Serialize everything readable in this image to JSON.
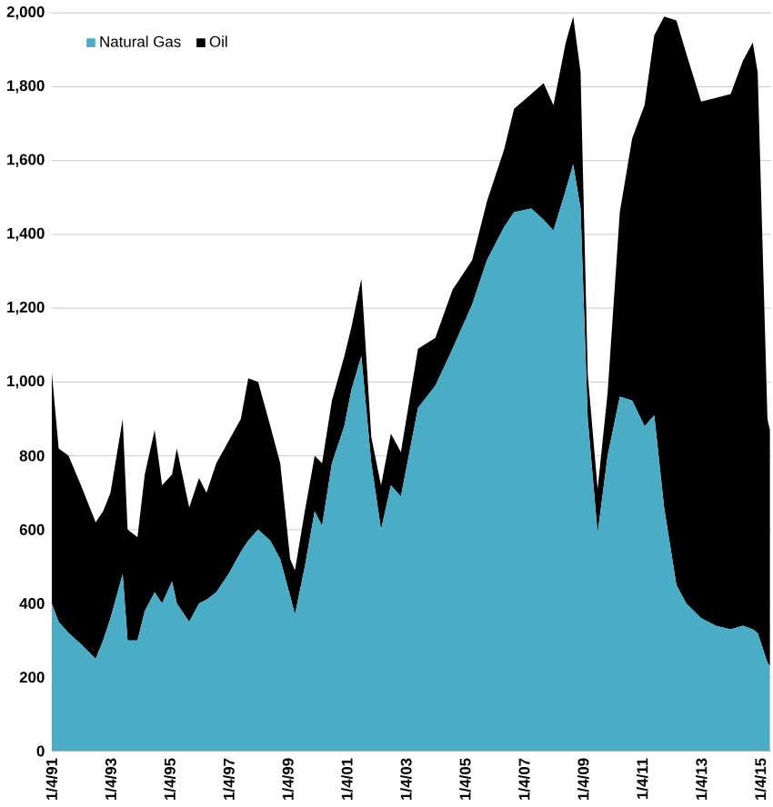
{
  "chart_data": {
    "type": "area",
    "stacked": true,
    "x": [
      "1991-01-04",
      "1991-04",
      "1991-08",
      "1992-01",
      "1992-07",
      "1992-10",
      "1993-01",
      "1993-06",
      "1993-08",
      "1993-12",
      "1994-03",
      "1994-07",
      "1994-10",
      "1995-02",
      "1995-04",
      "1995-09",
      "1996-01",
      "1996-04",
      "1996-08",
      "1997-01",
      "1997-06",
      "1997-09",
      "1998-01",
      "1998-06",
      "1998-10",
      "1999-02",
      "1999-04",
      "1999-08",
      "1999-12",
      "2000-03",
      "2000-07",
      "2000-12",
      "2001-03",
      "2001-07",
      "2001-11",
      "2002-03",
      "2002-07",
      "2002-11",
      "2003-06",
      "2004-01",
      "2004-08",
      "2005-04",
      "2005-10",
      "2006-05",
      "2006-09",
      "2007-04",
      "2007-09",
      "2008-01",
      "2008-06",
      "2008-09",
      "2008-12",
      "2009-03",
      "2009-07",
      "2009-11",
      "2010-04",
      "2010-09",
      "2011-02",
      "2011-06",
      "2011-10",
      "2012-03",
      "2012-07",
      "2013-01",
      "2013-07",
      "2014-01",
      "2014-06",
      "2014-10",
      "2014-12",
      "2015-04",
      "2015-05"
    ],
    "series": [
      {
        "name": "Natural Gas",
        "color": "#4bacc6",
        "values": [
          400,
          350,
          320,
          290,
          250,
          300,
          360,
          480,
          300,
          300,
          380,
          430,
          400,
          460,
          400,
          350,
          400,
          410,
          430,
          480,
          540,
          570,
          600,
          570,
          520,
          420,
          370,
          500,
          650,
          610,
          780,
          880,
          980,
          1070,
          780,
          600,
          720,
          690,
          930,
          990,
          1090,
          1210,
          1330,
          1420,
          1460,
          1470,
          1440,
          1410,
          1520,
          1590,
          1470,
          900,
          590,
          800,
          960,
          950,
          880,
          910,
          660,
          450,
          400,
          360,
          340,
          330,
          340,
          330,
          320,
          240,
          230
        ]
      },
      {
        "name": "Oil",
        "color": "#000000",
        "values": [
          630,
          470,
          480,
          430,
          370,
          350,
          340,
          420,
          300,
          280,
          370,
          440,
          320,
          290,
          420,
          310,
          340,
          290,
          350,
          360,
          360,
          440,
          400,
          310,
          260,
          100,
          120,
          150,
          150,
          170,
          170,
          190,
          170,
          210,
          70,
          120,
          140,
          120,
          160,
          130,
          160,
          120,
          160,
          210,
          280,
          310,
          370,
          340,
          400,
          400,
          370,
          120,
          120,
          170,
          500,
          710,
          870,
          1030,
          1330,
          1530,
          1490,
          1400,
          1430,
          1450,
          1530,
          1590,
          1520,
          660,
          640
        ]
      }
    ],
    "xlim": [
      "1991-01-04",
      "2015-05-15"
    ],
    "xticks": [
      {
        "value": "1991-01-04",
        "label": "1/4/91"
      },
      {
        "value": "1993-01-04",
        "label": "1/4/93"
      },
      {
        "value": "1995-01-04",
        "label": "1/4/95"
      },
      {
        "value": "1997-01-04",
        "label": "1/4/97"
      },
      {
        "value": "1999-01-04",
        "label": "1/4/99"
      },
      {
        "value": "2001-01-04",
        "label": "1/4/01"
      },
      {
        "value": "2003-01-04",
        "label": "1/4/03"
      },
      {
        "value": "2005-01-04",
        "label": "1/4/05"
      },
      {
        "value": "2007-01-04",
        "label": "1/4/07"
      },
      {
        "value": "2009-01-04",
        "label": "1/4/09"
      },
      {
        "value": "2011-01-04",
        "label": "1/4/11"
      },
      {
        "value": "2013-01-04",
        "label": "1/4/13"
      },
      {
        "value": "2015-01-04",
        "label": "1/4/15"
      }
    ],
    "ylim": [
      0,
      2000
    ],
    "yticks": [
      0,
      200,
      400,
      600,
      800,
      {
        "value": 1000,
        "label": "1,000"
      },
      {
        "value": 1200,
        "label": "1,200"
      },
      {
        "value": 1400,
        "label": "1,400"
      },
      {
        "value": 1600,
        "label": "1,600"
      },
      {
        "value": 1800,
        "label": "1,800"
      },
      {
        "value": 2000,
        "label": "2,000"
      }
    ],
    "grid": "y",
    "legend": "top left"
  }
}
